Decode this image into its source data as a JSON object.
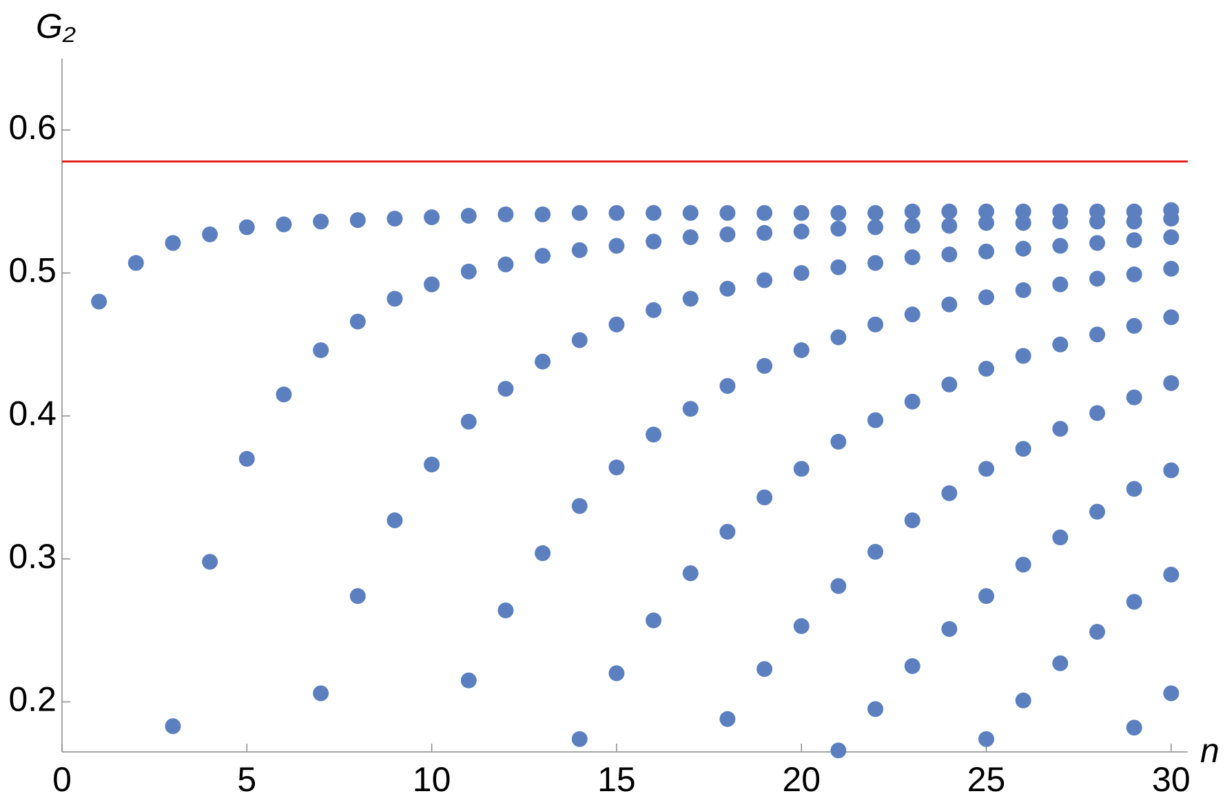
{
  "chart_data": {
    "type": "scatter",
    "x_label": "n",
    "y_label": "G₂",
    "xlim": [
      0,
      30.45
    ],
    "ylim": [
      0.165,
      0.65
    ],
    "xticks": [
      0,
      5,
      10,
      15,
      20,
      25,
      30
    ],
    "yticks": [
      0.2,
      0.3,
      0.4,
      0.5,
      0.6
    ],
    "reference_line": {
      "value": 0.578,
      "color": "#e3231f"
    },
    "series": [
      {
        "color": "#5b7fbf",
        "x": [
          1,
          2,
          3,
          3,
          4,
          4,
          5,
          5,
          6,
          6,
          7,
          7,
          7,
          8,
          8,
          8,
          9,
          9,
          9,
          10,
          10,
          10,
          11,
          11,
          11,
          11,
          12,
          12,
          12,
          12,
          13,
          13,
          13,
          13,
          14,
          14,
          14,
          14,
          14,
          15,
          15,
          15,
          15,
          15,
          16,
          16,
          16,
          16,
          16,
          17,
          17,
          17,
          17,
          17,
          18,
          18,
          18,
          18,
          18,
          18,
          19,
          19,
          19,
          19,
          19,
          19,
          20,
          20,
          20,
          20,
          20,
          20,
          21,
          21,
          21,
          21,
          21,
          21,
          21,
          22,
          22,
          22,
          22,
          22,
          22,
          22,
          23,
          23,
          23,
          23,
          23,
          23,
          23,
          24,
          24,
          24,
          24,
          24,
          24,
          24,
          25,
          25,
          25,
          25,
          25,
          25,
          25,
          25,
          26,
          26,
          26,
          26,
          26,
          26,
          26,
          26,
          27,
          27,
          27,
          27,
          27,
          27,
          27,
          27,
          28,
          28,
          28,
          28,
          28,
          28,
          28,
          28,
          29,
          29,
          29,
          29,
          29,
          29,
          29,
          29,
          29,
          30,
          30,
          30,
          30,
          30,
          30,
          30,
          30,
          30
        ],
        "values": [
          0.48,
          0.507,
          0.521,
          0.183,
          0.527,
          0.298,
          0.532,
          0.37,
          0.534,
          0.415,
          0.536,
          0.446,
          0.206,
          0.537,
          0.466,
          0.274,
          0.538,
          0.482,
          0.327,
          0.539,
          0.492,
          0.366,
          0.54,
          0.501,
          0.396,
          0.215,
          0.541,
          0.506,
          0.419,
          0.264,
          0.541,
          0.512,
          0.438,
          0.304,
          0.542,
          0.516,
          0.453,
          0.337,
          0.174,
          0.542,
          0.519,
          0.464,
          0.364,
          0.22,
          0.542,
          0.522,
          0.474,
          0.387,
          0.257,
          0.542,
          0.525,
          0.482,
          0.405,
          0.29,
          0.542,
          0.527,
          0.489,
          0.421,
          0.319,
          0.188,
          0.542,
          0.528,
          0.495,
          0.435,
          0.343,
          0.223,
          0.542,
          0.529,
          0.5,
          0.446,
          0.363,
          0.253,
          0.542,
          0.531,
          0.504,
          0.455,
          0.382,
          0.281,
          0.166,
          0.542,
          0.532,
          0.507,
          0.464,
          0.397,
          0.305,
          0.195,
          0.543,
          0.533,
          0.511,
          0.471,
          0.41,
          0.327,
          0.225,
          0.543,
          0.533,
          0.513,
          0.478,
          0.422,
          0.346,
          0.251,
          0.543,
          0.535,
          0.515,
          0.483,
          0.433,
          0.363,
          0.274,
          0.174,
          0.543,
          0.535,
          0.517,
          0.488,
          0.442,
          0.377,
          0.296,
          0.201,
          0.543,
          0.536,
          0.519,
          0.492,
          0.45,
          0.391,
          0.315,
          0.227,
          0.543,
          0.536,
          0.521,
          0.496,
          0.457,
          0.402,
          0.333,
          0.249,
          0.543,
          0.536,
          0.523,
          0.499,
          0.463,
          0.413,
          0.349,
          0.27,
          0.182,
          0.544,
          0.538,
          0.525,
          0.503,
          0.469,
          0.423,
          0.362,
          0.289,
          0.206
        ]
      }
    ]
  }
}
